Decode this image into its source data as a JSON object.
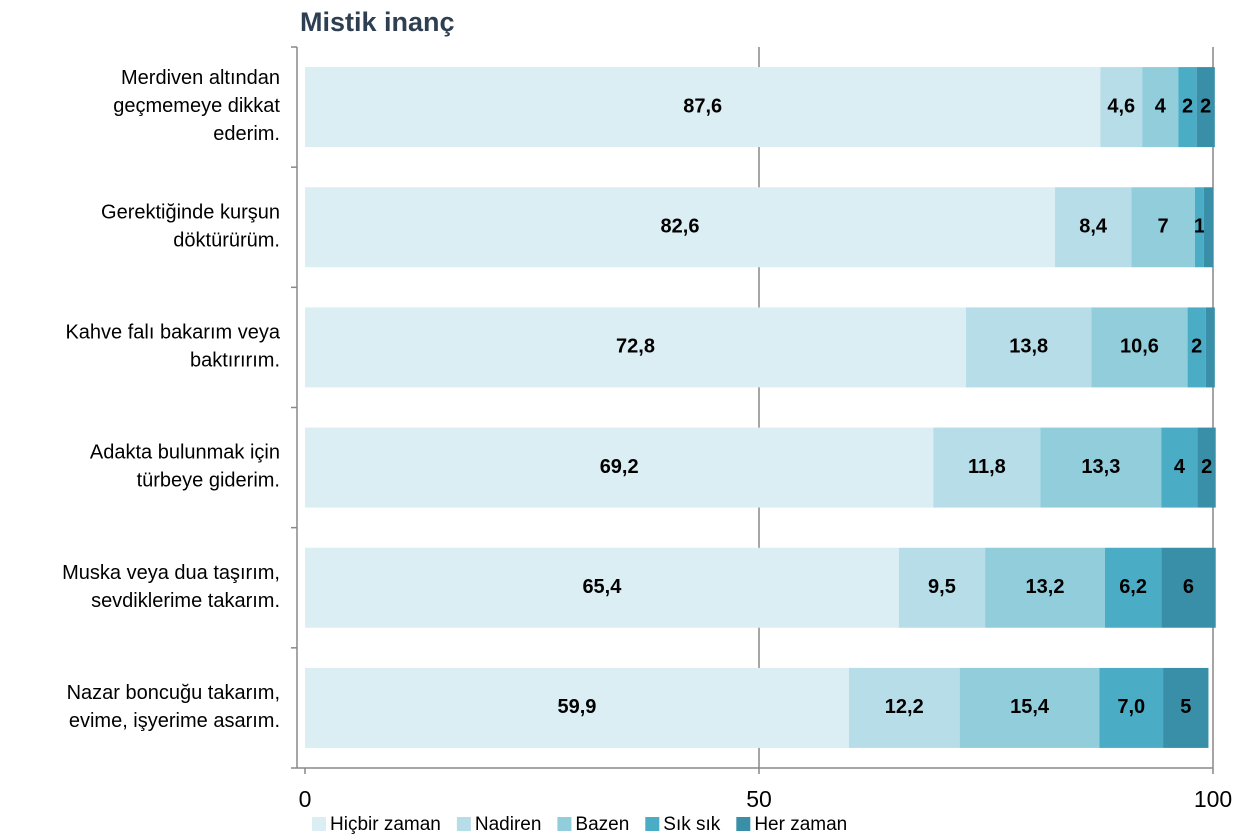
{
  "chart_data": {
    "type": "stacked_bar_horizontal",
    "title": "Mistik inanç",
    "categories": [
      [
        "Merdiven altından",
        "geçmemeye dikkat",
        "ederim."
      ],
      [
        "Gerektiğinde kurşun",
        "döktürürüm."
      ],
      [
        "Kahve falı bakarım veya",
        "baktırırım."
      ],
      [
        "Adakta bulunmak için",
        "türbeye giderim."
      ],
      [
        "Muska veya dua taşırım,",
        "sevdiklerime takarım."
      ],
      [
        "Nazar boncuğu takarım,",
        "evime, işyerime asarım."
      ]
    ],
    "series": [
      {
        "name": "Hiçbir zaman",
        "color": "#dbeef4",
        "values": [
          87.6,
          82.6,
          72.8,
          69.2,
          65.4,
          59.9
        ],
        "value_labels": [
          "87,6",
          "82,6",
          "72,8",
          "69,2",
          "65,4",
          "59,9"
        ]
      },
      {
        "name": "Nadiren",
        "color": "#b7dde8",
        "values": [
          4.6,
          8.4,
          13.8,
          11.8,
          9.5,
          12.2
        ],
        "value_labels": [
          "4,6",
          "8,4",
          "13,8",
          "11,8",
          "9,5",
          "12,2"
        ]
      },
      {
        "name": "Bazen",
        "color": "#92cddc",
        "values": [
          4,
          7,
          10.6,
          13.3,
          13.2,
          15.4
        ],
        "value_labels": [
          "4",
          "7",
          "10,6",
          "13,3",
          "13,2",
          "15,4"
        ]
      },
      {
        "name": "Sık sık",
        "color": "#4bacc6",
        "values": [
          2,
          1,
          2,
          4,
          6.2,
          7.0
        ],
        "value_labels": [
          "2",
          "1",
          "2",
          "4",
          "6,2",
          "7,0"
        ]
      },
      {
        "name": "Her zaman",
        "color": "#3a8fa8",
        "values": [
          2,
          1,
          1,
          2,
          6,
          5
        ],
        "value_labels": [
          "2",
          null,
          null,
          "2",
          "6",
          "5"
        ]
      }
    ],
    "xlim": [
      0,
      100
    ],
    "xticks": [
      0,
      50,
      100
    ],
    "grid": true,
    "legend": "bottom"
  }
}
